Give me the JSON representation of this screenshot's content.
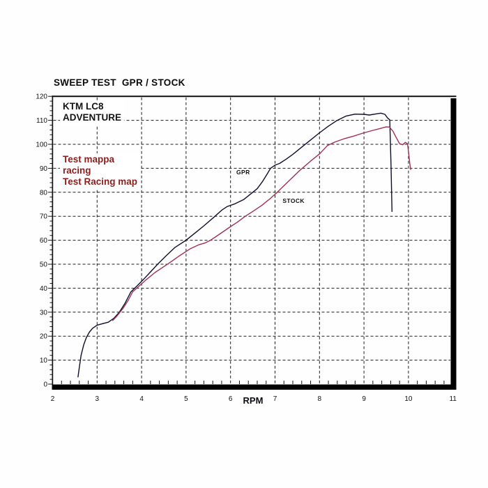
{
  "title": "SWEEP TEST  GPR / STOCK",
  "chart_data": {
    "type": "line",
    "title": "SWEEP TEST  GPR / STOCK",
    "xlabel": "RPM",
    "ylabel": "",
    "xlim": [
      2,
      11
    ],
    "ylim": [
      0,
      120
    ],
    "x_ticks": [
      2,
      3,
      4,
      5,
      6,
      7,
      8,
      9,
      10,
      11
    ],
    "y_ticks": [
      0,
      10,
      20,
      30,
      40,
      50,
      60,
      70,
      80,
      90,
      100,
      110,
      120
    ],
    "grid": "dashed-black-on-white",
    "legend_position": "inline-curve-labels",
    "annotations": {
      "bike": {
        "lines": [
          "KTM LC8",
          "ADVENTURE"
        ],
        "color": "#141414"
      },
      "map_note": {
        "lines": [
          "Test mappa",
          "racing",
          "Test Racing map"
        ],
        "color": "#8b1f1f"
      }
    },
    "series": [
      {
        "name": "GPR",
        "color": "#0d0d2e",
        "label_color": "#111111",
        "label_pos": {
          "rpm": 6.13,
          "value": 88.5
        },
        "points": [
          [
            2.57,
            3
          ],
          [
            2.6,
            7
          ],
          [
            2.64,
            12
          ],
          [
            2.7,
            16.5
          ],
          [
            2.76,
            19.5
          ],
          [
            2.83,
            21.8
          ],
          [
            2.9,
            23.3
          ],
          [
            3.0,
            24.6
          ],
          [
            3.12,
            25.2
          ],
          [
            3.25,
            25.8
          ],
          [
            3.38,
            27.5
          ],
          [
            3.5,
            30
          ],
          [
            3.62,
            33.5
          ],
          [
            3.76,
            38.5
          ],
          [
            3.9,
            41
          ],
          [
            4.05,
            43.8
          ],
          [
            4.2,
            46.8
          ],
          [
            4.36,
            50
          ],
          [
            4.55,
            53.5
          ],
          [
            4.75,
            57
          ],
          [
            5.0,
            60
          ],
          [
            5.2,
            63
          ],
          [
            5.4,
            66
          ],
          [
            5.65,
            70
          ],
          [
            5.8,
            72.5
          ],
          [
            5.92,
            74
          ],
          [
            6.1,
            75.2
          ],
          [
            6.3,
            77
          ],
          [
            6.5,
            80
          ],
          [
            6.6,
            81.5
          ],
          [
            6.72,
            84.5
          ],
          [
            6.82,
            87.5
          ],
          [
            6.9,
            90
          ],
          [
            7.0,
            91.3
          ],
          [
            7.1,
            92
          ],
          [
            7.25,
            93.8
          ],
          [
            7.4,
            95.8
          ],
          [
            7.6,
            98.8
          ],
          [
            7.8,
            101.8
          ],
          [
            8.0,
            104.8
          ],
          [
            8.2,
            107.6
          ],
          [
            8.4,
            110
          ],
          [
            8.6,
            111.8
          ],
          [
            8.8,
            112.6
          ],
          [
            9.0,
            112.5
          ],
          [
            9.12,
            112.2
          ],
          [
            9.28,
            112.7
          ],
          [
            9.38,
            113
          ],
          [
            9.47,
            112.5
          ],
          [
            9.53,
            111
          ],
          [
            9.58,
            110.2
          ],
          [
            9.61,
            90
          ],
          [
            9.63,
            72
          ]
        ]
      },
      {
        "name": "STOCK",
        "color": "#a03050",
        "label_color": "#111111",
        "label_pos": {
          "rpm": 7.17,
          "value": 76.5
        },
        "points": [
          [
            3.35,
            26.5
          ],
          [
            3.45,
            28.5
          ],
          [
            3.58,
            31.5
          ],
          [
            3.7,
            35
          ],
          [
            3.8,
            38.5
          ],
          [
            3.95,
            41
          ],
          [
            4.1,
            43.5
          ],
          [
            4.3,
            46.5
          ],
          [
            4.5,
            49
          ],
          [
            4.62,
            50.5
          ],
          [
            4.85,
            53.5
          ],
          [
            5.1,
            56.5
          ],
          [
            5.3,
            58.2
          ],
          [
            5.42,
            58.8
          ],
          [
            5.55,
            60
          ],
          [
            5.75,
            62.5
          ],
          [
            6.0,
            65.7
          ],
          [
            6.15,
            67.5
          ],
          [
            6.33,
            70
          ],
          [
            6.5,
            72
          ],
          [
            6.7,
            74.5
          ],
          [
            6.9,
            77.5
          ],
          [
            7.05,
            80
          ],
          [
            7.3,
            84.5
          ],
          [
            7.55,
            89
          ],
          [
            7.8,
            93
          ],
          [
            8.0,
            96
          ],
          [
            8.18,
            99.5
          ],
          [
            8.35,
            101
          ],
          [
            8.55,
            102.3
          ],
          [
            8.75,
            103.3
          ],
          [
            9.0,
            104.8
          ],
          [
            9.2,
            105.8
          ],
          [
            9.35,
            106.5
          ],
          [
            9.5,
            107.3
          ],
          [
            9.57,
            107.2
          ],
          [
            9.65,
            105.5
          ],
          [
            9.72,
            103
          ],
          [
            9.8,
            100.3
          ],
          [
            9.87,
            99.8
          ],
          [
            9.93,
            100.8
          ],
          [
            9.98,
            100.2
          ],
          [
            10.0,
            97
          ],
          [
            10.03,
            92
          ],
          [
            10.05,
            89.5
          ]
        ]
      }
    ]
  }
}
